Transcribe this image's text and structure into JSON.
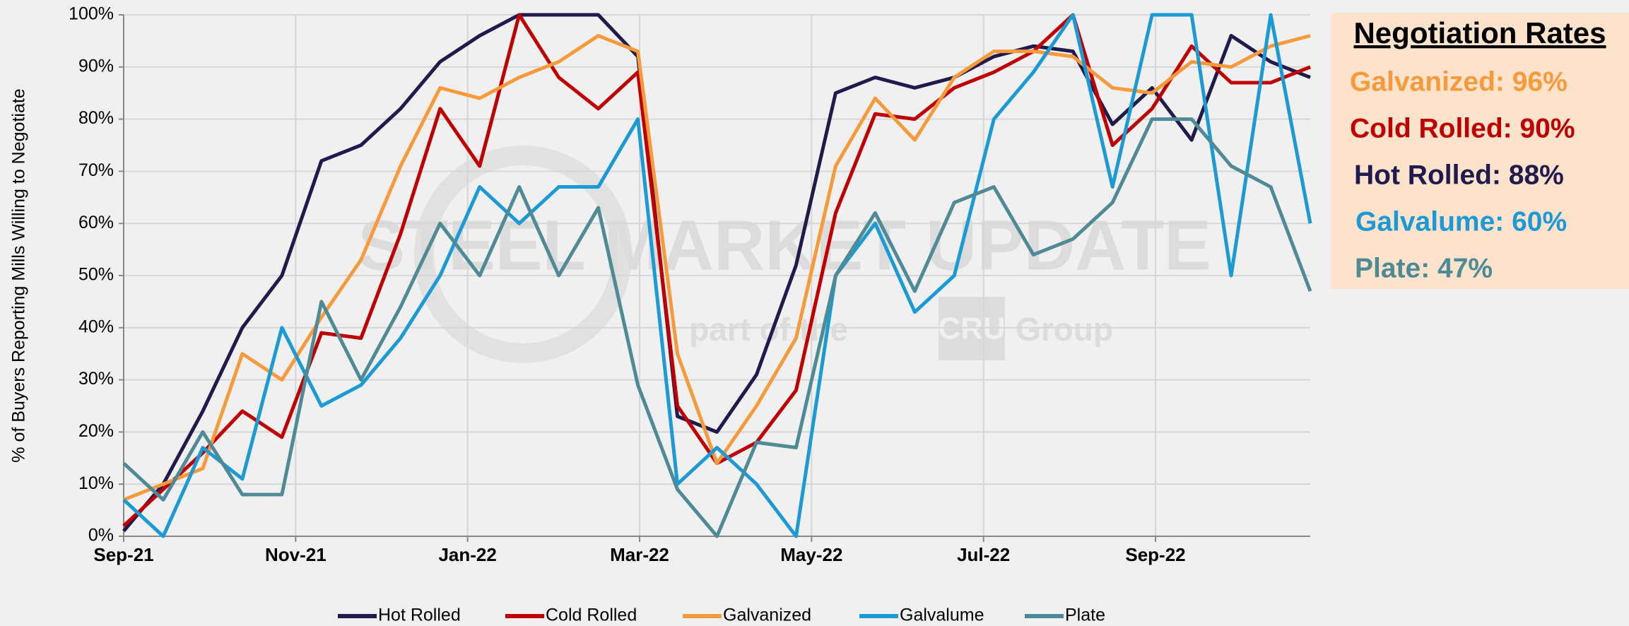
{
  "chart_data": {
    "type": "line",
    "y_label": "% of Buyers Reporting Mills Willing to Negotiate",
    "x": [
      0,
      0.46,
      0.92,
      1.38,
      1.84,
      2.3,
      2.76,
      3.22,
      3.68,
      4.14,
      4.6,
      5.06,
      5.52,
      5.98,
      6.44,
      6.9,
      7.36,
      7.82,
      8.28,
      8.74,
      9.2,
      9.66,
      10.12,
      10.58,
      11.04,
      11.5,
      11.96,
      12.42,
      12.88,
      13.34,
      13.8
    ],
    "xlim": [
      0,
      13.8
    ],
    "xticks": [
      {
        "value": 0,
        "label": "Sep-21"
      },
      {
        "value": 2,
        "label": "Nov-21"
      },
      {
        "value": 4,
        "label": "Jan-22"
      },
      {
        "value": 6,
        "label": "Mar-22"
      },
      {
        "value": 8,
        "label": "May-22"
      },
      {
        "value": 10,
        "label": "Jul-22"
      },
      {
        "value": 12,
        "label": "Sep-22"
      }
    ],
    "ylim": [
      0,
      100
    ],
    "yticks": [
      {
        "value": 0,
        "label": "0%"
      },
      {
        "value": 10,
        "label": "10%"
      },
      {
        "value": 20,
        "label": "20%"
      },
      {
        "value": 30,
        "label": "30%"
      },
      {
        "value": 40,
        "label": "40%"
      },
      {
        "value": 50,
        "label": "50%"
      },
      {
        "value": 60,
        "label": "60%"
      },
      {
        "value": 70,
        "label": "70%"
      },
      {
        "value": 80,
        "label": "80%"
      },
      {
        "value": 90,
        "label": "90%"
      },
      {
        "value": 100,
        "label": "100%"
      }
    ],
    "grid": true,
    "legend": "bottom",
    "series": [
      {
        "name": "Hot Rolled",
        "color": "#211a4d",
        "values": [
          1,
          10,
          24,
          40,
          50,
          72,
          75,
          82,
          91,
          96,
          100,
          100,
          100,
          92,
          23,
          20,
          31,
          52,
          85,
          88,
          86,
          88,
          92,
          94,
          93,
          79,
          86,
          76,
          96,
          91,
          88
        ]
      },
      {
        "name": "Cold Rolled",
        "color": "#c00000",
        "values": [
          2,
          9,
          16,
          24,
          19,
          39,
          38,
          58,
          82,
          71,
          100,
          88,
          82,
          89,
          25,
          14,
          18,
          28,
          62,
          81,
          80,
          86,
          89,
          93,
          100,
          75,
          82,
          94,
          87,
          87,
          90
        ]
      },
      {
        "name": "Galvanized",
        "color": "#f79a3b",
        "values": [
          7,
          10,
          13,
          35,
          30,
          42,
          53,
          71,
          86,
          84,
          88,
          91,
          96,
          93,
          35,
          14,
          25,
          38,
          71,
          84,
          76,
          88,
          93,
          93,
          92,
          86,
          85,
          91,
          90,
          94,
          96
        ]
      },
      {
        "name": "Galvalume",
        "color": "#1b9ad6",
        "values": [
          7,
          0,
          17,
          11,
          40,
          25,
          29,
          38,
          50,
          67,
          60,
          67,
          67,
          80,
          10,
          17,
          10,
          0,
          50,
          60,
          43,
          50,
          80,
          89,
          100,
          67,
          100,
          100,
          50,
          100,
          60
        ]
      },
      {
        "name": "Plate",
        "color": "#4e8b96",
        "values": [
          14,
          7,
          20,
          8,
          8,
          45,
          30,
          44,
          60,
          50,
          67,
          50,
          63,
          29,
          9,
          0,
          18,
          17,
          50,
          62,
          47,
          64,
          67,
          54,
          57,
          64,
          80,
          80,
          71,
          67,
          47
        ]
      }
    ],
    "panel": {
      "title": "Negotiation Rates",
      "items": [
        {
          "text": "Galvanized: 96%",
          "color": "#f79a3b"
        },
        {
          "text": "Cold Rolled: 90%",
          "color": "#c00000"
        },
        {
          "text": "Hot Rolled: 88%",
          "color": "#211a4d"
        },
        {
          "text": "Galvalume: 60%",
          "color": "#1b9ad6"
        },
        {
          "text": "Plate: 47%",
          "color": "#4e8b96"
        }
      ]
    },
    "watermark": {
      "brand": "STEEL MARKET UPDATE",
      "sub": "part of the",
      "logo": "CRU",
      "group": "Group"
    }
  }
}
